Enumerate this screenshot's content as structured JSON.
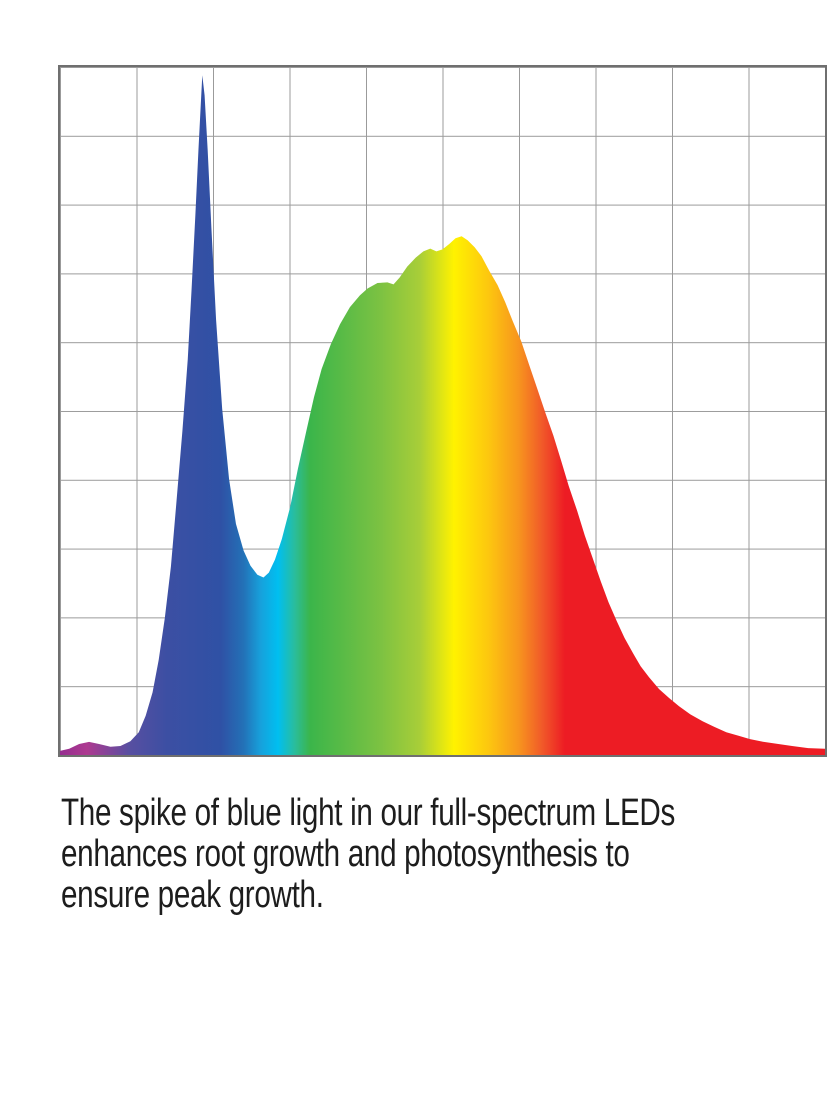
{
  "page": {
    "background": "#ffffff"
  },
  "caption": {
    "text_color": "#1d1d1d",
    "lines": [
      "The spike of blue light in our full-spectrum LEDs",
      "enhances root growth and photosynthesis to",
      "ensure peak growth."
    ]
  },
  "chart_data": {
    "type": "area",
    "title": "",
    "xlabel": "",
    "ylabel": "",
    "x_tick_labels": [],
    "y_tick_labels": [],
    "description": "Spectral power distribution of a full-spectrum grow LED: a narrow high blue spike (peak intensity ~0.99 at ~19% of the wavelength axis), a deep valley (~0.26 at ~27%), and a broad green-yellow-red hump (secondary peak ~0.75 at ~52%) decaying in a long red tail. Axes are unlabeled; plot sits on a 10x10 gray grid. x = fraction of chart width, y = relative intensity (0 = baseline, 1 = full chart height).",
    "grid": {
      "columns": 10,
      "rows": 10,
      "line_color": "#9b9b9b",
      "border_color": "#6f6f6f"
    },
    "legend": "none",
    "series": [
      {
        "name": "relative-spectral-intensity",
        "points": [
          [
            0.0,
            0.006
          ],
          [
            0.012,
            0.009
          ],
          [
            0.025,
            0.016
          ],
          [
            0.038,
            0.019
          ],
          [
            0.051,
            0.016
          ],
          [
            0.066,
            0.012
          ],
          [
            0.079,
            0.013
          ],
          [
            0.092,
            0.02
          ],
          [
            0.103,
            0.033
          ],
          [
            0.112,
            0.057
          ],
          [
            0.121,
            0.091
          ],
          [
            0.129,
            0.138
          ],
          [
            0.137,
            0.199
          ],
          [
            0.145,
            0.274
          ],
          [
            0.152,
            0.365
          ],
          [
            0.16,
            0.471
          ],
          [
            0.167,
            0.575
          ],
          [
            0.172,
            0.677
          ],
          [
            0.177,
            0.786
          ],
          [
            0.181,
            0.88
          ],
          [
            0.184,
            0.945
          ],
          [
            0.186,
            0.988
          ],
          [
            0.189,
            0.959
          ],
          [
            0.193,
            0.88
          ],
          [
            0.198,
            0.764
          ],
          [
            0.204,
            0.633
          ],
          [
            0.212,
            0.503
          ],
          [
            0.221,
            0.401
          ],
          [
            0.23,
            0.336
          ],
          [
            0.24,
            0.297
          ],
          [
            0.249,
            0.275
          ],
          [
            0.258,
            0.262
          ],
          [
            0.266,
            0.258
          ],
          [
            0.273,
            0.265
          ],
          [
            0.281,
            0.284
          ],
          [
            0.29,
            0.314
          ],
          [
            0.301,
            0.361
          ],
          [
            0.311,
            0.416
          ],
          [
            0.322,
            0.471
          ],
          [
            0.332,
            0.52
          ],
          [
            0.342,
            0.561
          ],
          [
            0.354,
            0.597
          ],
          [
            0.366,
            0.626
          ],
          [
            0.379,
            0.651
          ],
          [
            0.392,
            0.668
          ],
          [
            0.402,
            0.678
          ],
          [
            0.415,
            0.686
          ],
          [
            0.428,
            0.687
          ],
          [
            0.436,
            0.684
          ],
          [
            0.444,
            0.694
          ],
          [
            0.454,
            0.71
          ],
          [
            0.465,
            0.723
          ],
          [
            0.475,
            0.732
          ],
          [
            0.484,
            0.736
          ],
          [
            0.492,
            0.732
          ],
          [
            0.5,
            0.735
          ],
          [
            0.509,
            0.743
          ],
          [
            0.517,
            0.751
          ],
          [
            0.525,
            0.754
          ],
          [
            0.533,
            0.748
          ],
          [
            0.542,
            0.738
          ],
          [
            0.551,
            0.725
          ],
          [
            0.561,
            0.704
          ],
          [
            0.572,
            0.683
          ],
          [
            0.582,
            0.658
          ],
          [
            0.592,
            0.63
          ],
          [
            0.603,
            0.601
          ],
          [
            0.613,
            0.568
          ],
          [
            0.624,
            0.532
          ],
          [
            0.634,
            0.499
          ],
          [
            0.645,
            0.464
          ],
          [
            0.655,
            0.428
          ],
          [
            0.665,
            0.391
          ],
          [
            0.676,
            0.355
          ],
          [
            0.686,
            0.319
          ],
          [
            0.697,
            0.284
          ],
          [
            0.707,
            0.252
          ],
          [
            0.717,
            0.222
          ],
          [
            0.728,
            0.194
          ],
          [
            0.738,
            0.17
          ],
          [
            0.749,
            0.148
          ],
          [
            0.759,
            0.129
          ],
          [
            0.77,
            0.113
          ],
          [
            0.783,
            0.096
          ],
          [
            0.796,
            0.083
          ],
          [
            0.809,
            0.071
          ],
          [
            0.824,
            0.059
          ],
          [
            0.84,
            0.049
          ],
          [
            0.855,
            0.041
          ],
          [
            0.871,
            0.033
          ],
          [
            0.887,
            0.028
          ],
          [
            0.902,
            0.023
          ],
          [
            0.92,
            0.019
          ],
          [
            0.939,
            0.016
          ],
          [
            0.957,
            0.013
          ],
          [
            0.978,
            0.01
          ],
          [
            1.0,
            0.009
          ]
        ]
      }
    ],
    "gradient_stops": [
      {
        "offset": 0.0,
        "color": "#952D90"
      },
      {
        "offset": 0.035,
        "color": "#AD3A90"
      },
      {
        "offset": 0.09,
        "color": "#584FA1"
      },
      {
        "offset": 0.14,
        "color": "#3C4FA3"
      },
      {
        "offset": 0.21,
        "color": "#2F51A5"
      },
      {
        "offset": 0.24,
        "color": "#2371B7"
      },
      {
        "offset": 0.262,
        "color": "#17A0DB"
      },
      {
        "offset": 0.285,
        "color": "#00BFF0"
      },
      {
        "offset": 0.307,
        "color": "#2ABD9B"
      },
      {
        "offset": 0.327,
        "color": "#3BB54A"
      },
      {
        "offset": 0.42,
        "color": "#7DC242"
      },
      {
        "offset": 0.47,
        "color": "#A8CE38"
      },
      {
        "offset": 0.515,
        "color": "#FFF200"
      },
      {
        "offset": 0.56,
        "color": "#FDC70F"
      },
      {
        "offset": 0.6,
        "color": "#F7941E"
      },
      {
        "offset": 0.63,
        "color": "#F15A29"
      },
      {
        "offset": 0.66,
        "color": "#ED1C24"
      },
      {
        "offset": 1.0,
        "color": "#ED1C24"
      }
    ]
  }
}
